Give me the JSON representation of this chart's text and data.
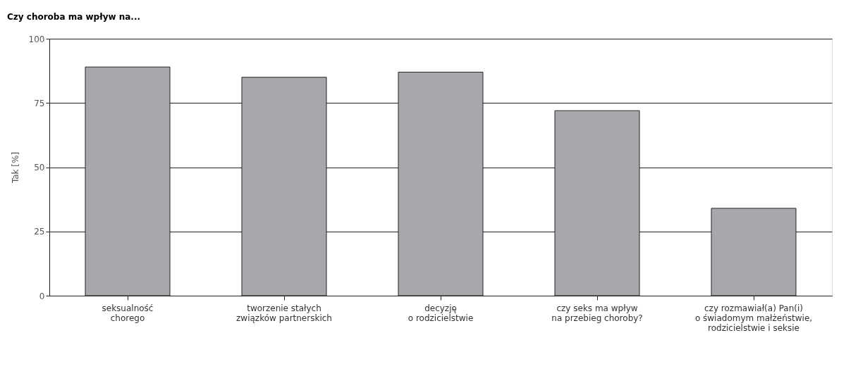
{
  "chart_data": {
    "type": "bar",
    "title": "Czy choroba ma wpływ na...",
    "ylabel": "Tak [%]",
    "categories": [
      "seksualność\nchorego",
      "tworzenie stałych\nzwiązków partnerskich",
      "decyzję\no rodzicielstwie",
      "czy seks ma wpływ\nna przebieg choroby?",
      "czy rozmawiał(a) Pan(i)\no świadomym małżeństwie,\nrodzicielstwie i seksie"
    ],
    "values": [
      89,
      85,
      87,
      72,
      34
    ],
    "color": "#a7a8ab",
    "ylim": [
      0,
      100
    ],
    "yticks": [
      0,
      25,
      50,
      75,
      100
    ],
    "grid": "y"
  }
}
